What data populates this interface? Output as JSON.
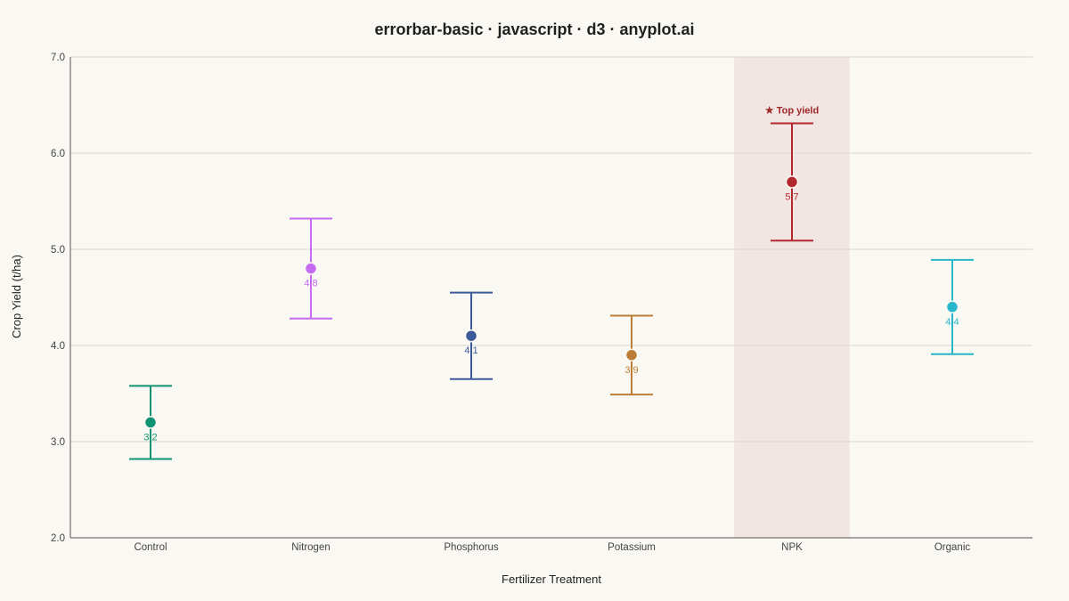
{
  "chart_data": {
    "type": "errorbar",
    "title": "errorbar-basic · javascript · d3 · anyplot.ai",
    "xlabel": "Fertilizer Treatment",
    "ylabel": "Crop Yield (t/ha)",
    "ylim": [
      2.0,
      7.0
    ],
    "yticks": [
      "2.0",
      "3.0",
      "4.0",
      "5.0",
      "6.0",
      "7.0"
    ],
    "grid": true,
    "categories": [
      "Control",
      "Nitrogen",
      "Phosphorus",
      "Potassium",
      "NPK",
      "Organic"
    ],
    "values": [
      3.2,
      4.8,
      4.1,
      3.9,
      5.7,
      4.4
    ],
    "value_labels": [
      "3.2",
      "4.8",
      "4.1",
      "3.9",
      "5.7",
      "4.4"
    ],
    "error_low": [
      2.82,
      4.28,
      3.65,
      3.49,
      5.09,
      3.91
    ],
    "error_high": [
      3.58,
      5.32,
      4.55,
      4.31,
      6.31,
      4.89
    ],
    "colors": [
      "#109373",
      "#C46BF2",
      "#3C5A99",
      "#BC7E36",
      "#B3282E",
      "#28B6CA"
    ],
    "highlight": {
      "category": "NPK",
      "label": "★ Top yield",
      "band_color": "#F2E6E2",
      "text_color": "#A0272C"
    }
  }
}
